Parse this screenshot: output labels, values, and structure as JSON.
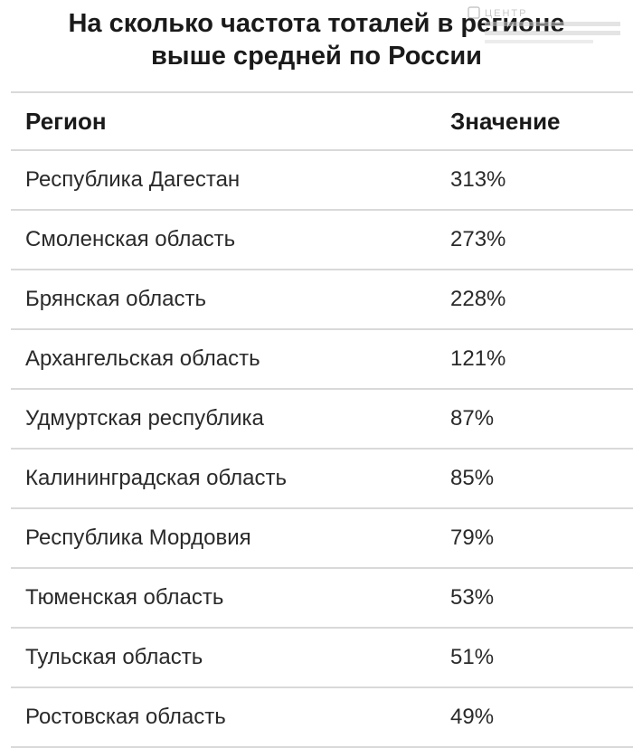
{
  "title": {
    "line1": "На сколько частота тоталей в регионе",
    "line2": "выше средней по России"
  },
  "watermark": {
    "text": "ЦЕНТР",
    "icon": "logo-watermark-icon"
  },
  "chart_data": {
    "type": "table",
    "columns": [
      "Регион",
      "Значение"
    ],
    "rows": [
      [
        "Республика Дагестан",
        "313%"
      ],
      [
        "Смоленская область",
        "273%"
      ],
      [
        "Брянская область",
        "228%"
      ],
      [
        "Архангельская область",
        "121%"
      ],
      [
        "Удмуртская республика",
        "87%"
      ],
      [
        "Калининградская область",
        "85%"
      ],
      [
        "Республика Мордовия",
        "79%"
      ],
      [
        "Тюменская область",
        "53%"
      ],
      [
        "Тульская область",
        "51%"
      ],
      [
        "Ростовская область",
        "49%"
      ]
    ],
    "values": [
      313,
      273,
      228,
      121,
      87,
      85,
      79,
      53,
      51,
      49
    ],
    "unit": "%"
  }
}
